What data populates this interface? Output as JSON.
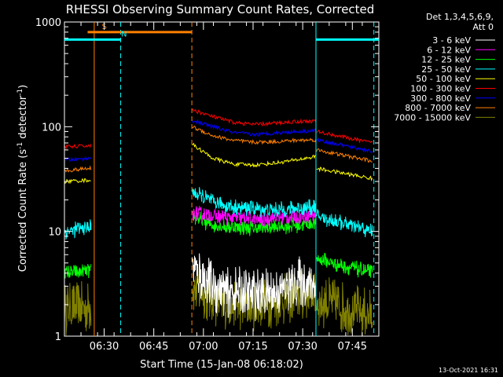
{
  "chart_data": {
    "type": "line",
    "title": "RHESSI Observing Summary Count Rates, Corrected",
    "xlabel": "Start Time (15-Jan-08 06:18:02)",
    "ylabel_main": "Corrected Count Rate (s",
    "ylabel_exp1": "-1",
    "ylabel_mid": " detector",
    "ylabel_exp2": "-1",
    "ylabel_end": ")",
    "yscale": "log",
    "ylim": [
      1,
      1000
    ],
    "xlim_minutes": [
      0,
      95
    ],
    "x_tick_labels": [
      {
        "label": "06:30",
        "minute": 12
      },
      {
        "label": "06:45",
        "minute": 27
      },
      {
        "label": "07:00",
        "minute": 42
      },
      {
        "label": "07:15",
        "minute": 57
      },
      {
        "label": "07:30",
        "minute": 72
      },
      {
        "label": "07:45",
        "minute": 87
      }
    ],
    "y_tick_labels": [
      {
        "label": "1",
        "value": 1
      },
      {
        "label": "10",
        "value": 10
      },
      {
        "label": "100",
        "value": 100
      },
      {
        "label": "1000",
        "value": 1000
      }
    ],
    "legend_header": [
      "Det 1,3,4,5,6,9,",
      "Att 0"
    ],
    "series": [
      {
        "name": "3 - 6 keV",
        "color": "#ffffff",
        "pre": [
          0,
          0
        ],
        "main": [
          4.5,
          3.0,
          2.6,
          2.5,
          2.6,
          3.2,
          3.3
        ],
        "post": [
          0,
          0
        ]
      },
      {
        "name": "6 - 12 keV",
        "color": "#ff00ff",
        "pre": [
          0,
          0
        ],
        "main": [
          15,
          14,
          13.5,
          13,
          13.5,
          14,
          14.5
        ],
        "post": [
          0,
          0
        ]
      },
      {
        "name": "12 - 25 keV",
        "color": "#00ff00",
        "pre": [
          4.0,
          4.2
        ],
        "main": [
          14,
          11.5,
          11,
          10.8,
          11,
          11.5,
          12
        ],
        "post": [
          5.5,
          4.0
        ]
      },
      {
        "name": "25 - 50 keV",
        "color": "#00ffff",
        "pre": [
          10,
          11
        ],
        "main": [
          24,
          19,
          17,
          16.5,
          16,
          16.5,
          17
        ],
        "post": [
          14,
          10
        ]
      },
      {
        "name": "50 - 100 keV",
        "color": "#ffff00",
        "pre": [
          30,
          31
        ],
        "main": [
          68,
          50,
          44,
          43,
          45,
          48,
          52
        ],
        "post": [
          40,
          32
        ]
      },
      {
        "name": "100 - 300 keV",
        "color": "#ff0000",
        "pre": [
          64,
          66
        ],
        "main": [
          145,
          125,
          110,
          105,
          108,
          112,
          113
        ],
        "post": [
          90,
          70
        ]
      },
      {
        "name": "300 - 800 keV",
        "color": "#0000ff",
        "pre": [
          48,
          50
        ],
        "main": [
          115,
          100,
          88,
          84,
          87,
          90,
          92
        ],
        "post": [
          75,
          58
        ]
      },
      {
        "name": "800 - 7000 keV",
        "color": "#ff8000",
        "pre": [
          38,
          40
        ],
        "main": [
          100,
          82,
          74,
          71,
          72,
          74,
          75
        ],
        "post": [
          60,
          47
        ]
      },
      {
        "name": "7000 - 15000 keV",
        "color": "#808000",
        "pre": [
          1.8,
          1.9
        ],
        "main": [
          3.0,
          2.2,
          2.0,
          2.0,
          2.1,
          2.4,
          2.6
        ],
        "post": [
          2.2,
          1.6
        ]
      }
    ],
    "annotations": [
      {
        "label": "S",
        "color": "#ff8000",
        "start_minute": 7,
        "end_minute": 38.5,
        "level": 800
      },
      {
        "label": "N",
        "color": "#00ffff",
        "start_minute": 0,
        "end_minute": 17,
        "level": 680
      },
      {
        "label": "",
        "color": "#00ffff",
        "start_minute": 76,
        "end_minute": 95,
        "level": 680
      }
    ],
    "vertical_markers": [
      {
        "minute": 9,
        "color": "#ff8000",
        "style": "solid"
      },
      {
        "minute": 17,
        "color": "#00ffff",
        "style": "dashed"
      },
      {
        "minute": 38.5,
        "color": "#ff8000",
        "style": "dashed"
      },
      {
        "minute": 76,
        "color": "#00ffff",
        "style": "solid"
      },
      {
        "minute": 93.5,
        "color": "#00ffff",
        "style": "dashed"
      }
    ],
    "date_stamp": "13-Oct-2021 16:31"
  }
}
